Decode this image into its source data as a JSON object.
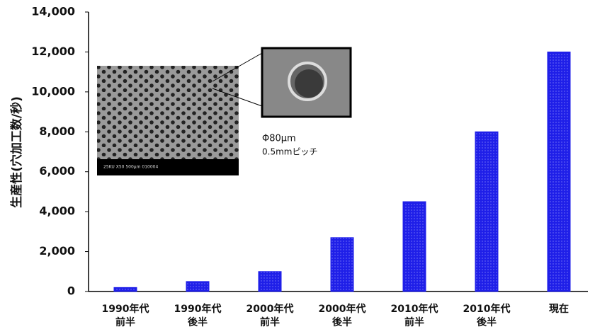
{
  "chart_data": {
    "type": "bar",
    "y_label": "生産性(穴加工数/秒)",
    "categories": [
      [
        "1990年代",
        "前半"
      ],
      [
        "1990年代",
        "後半"
      ],
      [
        "2000年代",
        "前半"
      ],
      [
        "2000年代",
        "後半"
      ],
      [
        "2010年代",
        "前半"
      ],
      [
        "2010年代",
        "後半"
      ],
      [
        "現在"
      ]
    ],
    "values": [
      200,
      500,
      1000,
      2700,
      4500,
      8000,
      12000
    ],
    "color": "#1f1fe8",
    "ylim": [
      0,
      14000
    ],
    "yticks": [
      0,
      {
        "value": 2000,
        "label": "2,000"
      },
      {
        "value": 4000,
        "label": "4,000"
      },
      {
        "value": 6000,
        "label": "6,000"
      },
      {
        "value": 8000,
        "label": "8,000"
      },
      {
        "value": 10000,
        "label": "10,000"
      },
      {
        "value": 12000,
        "label": "12,000"
      },
      {
        "value": 14000,
        "label": "14,000"
      }
    ],
    "grid": false,
    "annotations": [
      "Φ80μm",
      "0.5mmピッチ"
    ],
    "inset_caption": "25KU  X50  500μm  010004"
  }
}
